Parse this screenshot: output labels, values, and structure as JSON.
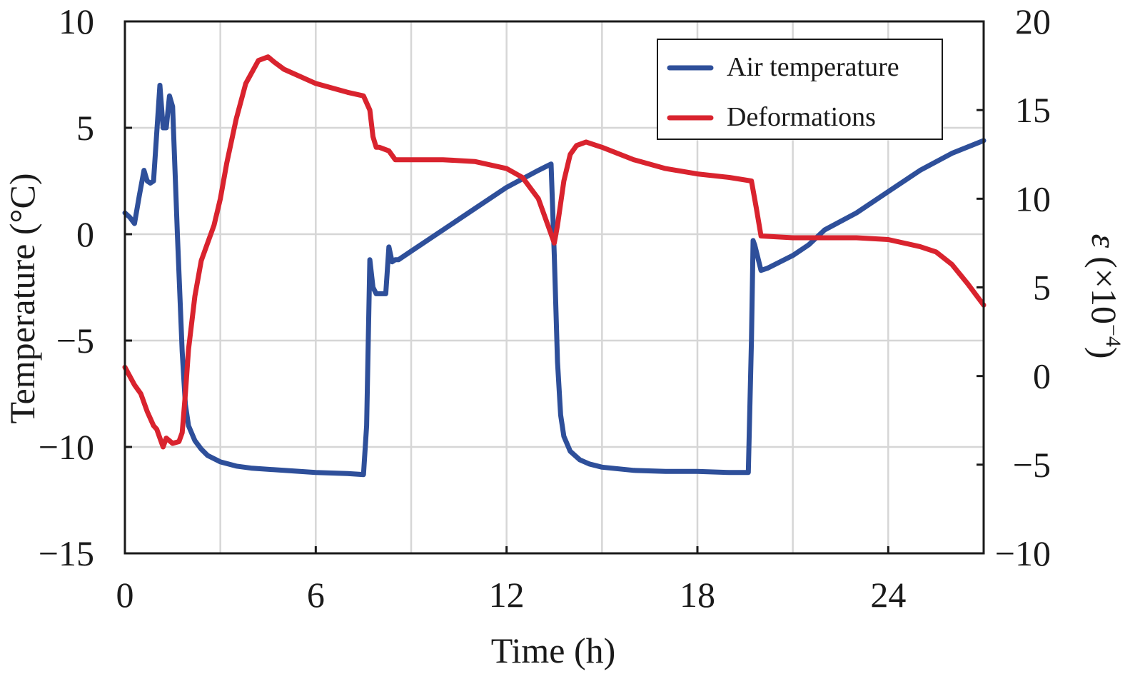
{
  "chart_data": {
    "type": "line",
    "xlabel": "Time (h)",
    "ylabel_left": "Temperature (°C)",
    "ylabel_right_symbol": "ε",
    "ylabel_right_unit": "(×10",
    "ylabel_right_exp": "−4",
    "ylabel_right_close": ")",
    "xlim": [
      0,
      27
    ],
    "ylim_left": [
      -15,
      10
    ],
    "ylim_right": [
      -10,
      20
    ],
    "x_ticks": [
      0,
      6,
      12,
      18,
      24
    ],
    "x_tick_labels": [
      "0",
      "6",
      "12",
      "18",
      "24"
    ],
    "y_left_ticks": [
      10,
      5,
      0,
      -5,
      -10,
      -15
    ],
    "y_left_tick_labels": [
      "10",
      "5",
      "0",
      "−5",
      "−10",
      "−15"
    ],
    "y_right_ticks": [
      20,
      15,
      10,
      5,
      0,
      -5,
      -10
    ],
    "y_right_tick_labels": [
      "20",
      "15",
      "10",
      "5",
      "0",
      "−5",
      "−10"
    ],
    "grid": true,
    "legend_position": "top-right",
    "colors": {
      "air": "#2e4f9a",
      "def": "#d9232e",
      "grid": "#d6d6d6",
      "axis": "#1a1a1a"
    },
    "series": [
      {
        "name": "Air temperature",
        "axis": "left",
        "color": "#2e4f9a",
        "x": [
          0,
          0.15,
          0.3,
          0.45,
          0.6,
          0.7,
          0.8,
          0.9,
          1.1,
          1.2,
          1.3,
          1.4,
          1.5,
          1.6,
          1.65,
          1.8,
          1.9,
          2.0,
          2.2,
          2.4,
          2.6,
          3.0,
          3.5,
          4.0,
          5.0,
          6.0,
          7.0,
          7.5,
          7.6,
          7.7,
          7.8,
          7.9,
          8.0,
          8.2,
          8.3,
          8.4,
          8.5,
          8.55,
          8.6,
          9.0,
          10.0,
          11.0,
          12.0,
          13.0,
          13.4,
          13.5,
          13.6,
          13.7,
          13.8,
          14.0,
          14.3,
          14.6,
          15.0,
          16.0,
          17.0,
          18.0,
          19.0,
          19.6,
          19.7,
          19.75,
          19.8,
          20.0,
          20.2,
          21.0,
          21.5,
          22.0,
          23.0,
          24.0,
          25.0,
          26.0,
          27.0
        ],
        "y": [
          1,
          0.8,
          0.5,
          1.8,
          3.0,
          2.5,
          2.4,
          2.5,
          7.0,
          5.0,
          5.0,
          6.5,
          6.0,
          2.0,
          0,
          -5.5,
          -8.0,
          -9.0,
          -9.7,
          -10.1,
          -10.4,
          -10.7,
          -10.9,
          -11.0,
          -11.1,
          -11.2,
          -11.25,
          -11.3,
          -9.0,
          -1.2,
          -2.5,
          -2.8,
          -2.8,
          -2.8,
          -0.6,
          -1.3,
          -1.2,
          -1.2,
          -1.2,
          -0.8,
          0.2,
          1.2,
          2.2,
          3.0,
          3.3,
          -1.0,
          -6.0,
          -8.5,
          -9.5,
          -10.2,
          -10.6,
          -10.8,
          -10.95,
          -11.1,
          -11.15,
          -11.15,
          -11.2,
          -11.2,
          -5.0,
          -0.3,
          -0.5,
          -1.7,
          -1.6,
          -1.0,
          -0.5,
          0.2,
          1.0,
          2.0,
          3.0,
          3.8,
          4.4
        ]
      },
      {
        "name": "Deformations",
        "axis": "right",
        "color": "#d9232e",
        "x": [
          0,
          0.3,
          0.5,
          0.7,
          0.9,
          1.0,
          1.1,
          1.2,
          1.3,
          1.5,
          1.7,
          1.8,
          1.9,
          2.0,
          2.2,
          2.4,
          2.6,
          2.8,
          3.0,
          3.2,
          3.5,
          3.8,
          4.2,
          4.5,
          4.7,
          5.0,
          6.0,
          7.0,
          7.5,
          7.7,
          7.8,
          7.9,
          8.0,
          8.3,
          8.5,
          8.6,
          9.0,
          10.0,
          11.0,
          12.0,
          12.5,
          13.0,
          13.3,
          13.5,
          13.6,
          13.8,
          14.0,
          14.2,
          14.5,
          15.0,
          16.0,
          17.0,
          18.0,
          19.0,
          19.7,
          19.85,
          20.0,
          21.0,
          22.0,
          23.0,
          24.0,
          25.0,
          25.5,
          26.0,
          26.5,
          27.0
        ],
        "y": [
          0.5,
          -0.5,
          -1.0,
          -2.0,
          -2.8,
          -3.0,
          -3.5,
          -4.0,
          -3.5,
          -3.8,
          -3.7,
          -3.2,
          -1.0,
          1.5,
          4.5,
          6.5,
          7.5,
          8.5,
          10.0,
          12.0,
          14.5,
          16.5,
          17.8,
          18.0,
          17.7,
          17.3,
          16.5,
          16.0,
          15.8,
          15.0,
          13.5,
          12.9,
          12.9,
          12.7,
          12.2,
          12.2,
          12.2,
          12.2,
          12.1,
          11.7,
          11.2,
          10.0,
          8.5,
          7.5,
          8.5,
          11.0,
          12.5,
          13.0,
          13.2,
          12.9,
          12.2,
          11.7,
          11.4,
          11.2,
          11.0,
          9.5,
          7.9,
          7.8,
          7.8,
          7.8,
          7.7,
          7.3,
          7.0,
          6.3,
          5.2,
          4.0
        ]
      }
    ]
  }
}
